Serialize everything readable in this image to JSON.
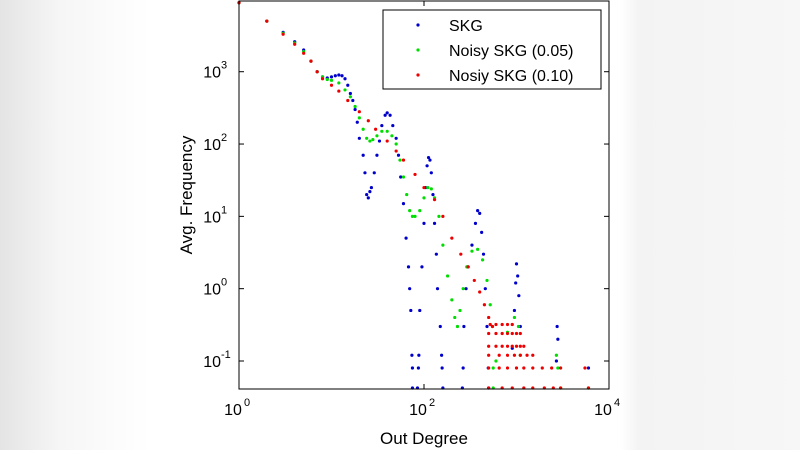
{
  "chart_data": {
    "type": "scatter",
    "title": "",
    "xlabel": "Out Degree",
    "ylabel": "Avg. Frequency",
    "xscale": "log",
    "yscale": "log",
    "xlim": [
      1,
      10000
    ],
    "ylim": [
      0.041,
      9500
    ],
    "grid": false,
    "legend_placement": "top-right",
    "x_ticks": [
      {
        "base": "10",
        "exp": "0",
        "value": 1
      },
      {
        "base": "10",
        "exp": "2",
        "value": 100
      },
      {
        "base": "10",
        "exp": "4",
        "value": 10000
      }
    ],
    "y_ticks": [
      {
        "base": "10",
        "exp": "-1",
        "value": 0.1
      },
      {
        "base": "10",
        "exp": "0",
        "value": 1
      },
      {
        "base": "10",
        "exp": "1",
        "value": 10
      },
      {
        "base": "10",
        "exp": "2",
        "value": 100
      },
      {
        "base": "10",
        "exp": "3",
        "value": 1000
      }
    ],
    "series": [
      {
        "name": "SKG",
        "color": "#0000cc",
        "points": [
          [
            1,
            9000
          ],
          [
            2,
            5000
          ],
          [
            3,
            3500
          ],
          [
            4,
            2600
          ],
          [
            5,
            2000
          ],
          [
            6,
            1400
          ],
          [
            7,
            1000
          ],
          [
            8,
            850
          ],
          [
            9,
            820
          ],
          [
            10,
            850
          ],
          [
            11,
            880
          ],
          [
            12,
            900
          ],
          [
            13,
            880
          ],
          [
            14,
            800
          ],
          [
            15,
            650
          ],
          [
            16,
            500
          ],
          [
            17,
            400
          ],
          [
            18,
            300
          ],
          [
            19,
            200
          ],
          [
            20,
            120
          ],
          [
            22,
            70
          ],
          [
            23,
            40
          ],
          [
            24,
            20
          ],
          [
            25,
            18
          ],
          [
            26,
            22
          ],
          [
            27,
            25
          ],
          [
            29,
            40
          ],
          [
            31,
            70
          ],
          [
            33,
            110
          ],
          [
            35,
            180
          ],
          [
            38,
            250
          ],
          [
            40,
            270
          ],
          [
            43,
            250
          ],
          [
            46,
            180
          ],
          [
            50,
            120
          ],
          [
            53,
            70
          ],
          [
            56,
            35
          ],
          [
            60,
            15
          ],
          [
            64,
            5
          ],
          [
            68,
            2
          ],
          [
            70,
            1
          ],
          [
            72,
            0.5
          ],
          [
            74,
            0.12
          ],
          [
            75,
            0.08
          ],
          [
            75,
            0.04
          ],
          [
            85,
            0.04
          ],
          [
            87,
            0.08
          ],
          [
            88,
            0.12
          ],
          [
            90,
            0.5
          ],
          [
            95,
            2
          ],
          [
            100,
            8
          ],
          [
            104,
            25
          ],
          [
            108,
            50
          ],
          [
            112,
            65
          ],
          [
            116,
            60
          ],
          [
            120,
            40
          ],
          [
            125,
            20
          ],
          [
            130,
            8
          ],
          [
            136,
            3
          ],
          [
            140,
            1
          ],
          [
            150,
            0.3
          ],
          [
            155,
            0.12
          ],
          [
            157,
            0.08
          ],
          [
            160,
            0.04
          ],
          [
            260,
            0.04
          ],
          [
            265,
            0.08
          ],
          [
            270,
            0.3
          ],
          [
            285,
            1
          ],
          [
            300,
            2
          ],
          [
            330,
            4
          ],
          [
            360,
            8
          ],
          [
            380,
            12
          ],
          [
            400,
            11
          ],
          [
            420,
            6
          ],
          [
            440,
            3
          ],
          [
            460,
            1
          ],
          [
            480,
            0.3
          ],
          [
            495,
            0.08
          ],
          [
            500,
            0.04
          ],
          [
            900,
            0.15
          ],
          [
            950,
            0.5
          ],
          [
            980,
            1.2
          ],
          [
            1000,
            2.2
          ],
          [
            1030,
            1.5
          ],
          [
            1060,
            0.8
          ],
          [
            1100,
            0.3
          ],
          [
            2700,
            0.1
          ],
          [
            2750,
            0.3
          ],
          [
            2800,
            0.2
          ],
          [
            6000,
            0.08
          ]
        ]
      },
      {
        "name": "Noisy SKG (0.05)",
        "color": "#00dd00",
        "points": [
          [
            1,
            9000
          ],
          [
            2,
            5000
          ],
          [
            3,
            3400
          ],
          [
            4,
            2500
          ],
          [
            5,
            1900
          ],
          [
            6,
            1400
          ],
          [
            7,
            1000
          ],
          [
            8,
            850
          ],
          [
            9,
            780
          ],
          [
            10,
            760
          ],
          [
            12,
            700
          ],
          [
            14,
            560
          ],
          [
            16,
            450
          ],
          [
            18,
            330
          ],
          [
            20,
            230
          ],
          [
            22,
            160
          ],
          [
            24,
            120
          ],
          [
            26,
            110
          ],
          [
            28,
            115
          ],
          [
            31,
            130
          ],
          [
            35,
            150
          ],
          [
            40,
            150
          ],
          [
            45,
            130
          ],
          [
            50,
            100
          ],
          [
            55,
            60
          ],
          [
            60,
            35
          ],
          [
            65,
            20
          ],
          [
            70,
            12
          ],
          [
            75,
            10
          ],
          [
            80,
            10
          ],
          [
            90,
            12
          ],
          [
            100,
            18
          ],
          [
            110,
            25
          ],
          [
            120,
            24
          ],
          [
            130,
            18
          ],
          [
            145,
            10
          ],
          [
            160,
            4
          ],
          [
            180,
            1.5
          ],
          [
            200,
            0.7
          ],
          [
            215,
            0.4
          ],
          [
            230,
            0.3
          ],
          [
            245,
            0.5
          ],
          [
            265,
            1
          ],
          [
            290,
            2
          ],
          [
            330,
            3.3
          ],
          [
            380,
            3.5
          ],
          [
            430,
            2.5
          ],
          [
            480,
            1.3
          ],
          [
            520,
            0.6
          ],
          [
            550,
            0.3
          ],
          [
            560,
            0.08
          ],
          [
            560,
            0.04
          ],
          [
            600,
            0.1
          ],
          [
            800,
            0.25
          ],
          [
            950,
            0.4
          ],
          [
            1050,
            0.3
          ],
          [
            1100,
            0.12
          ],
          [
            2700,
            0.12
          ],
          [
            2800,
            0.08
          ],
          [
            3000,
            0.04
          ],
          [
            6000,
            0.04
          ]
        ]
      },
      {
        "name": "Nosiy SKG (0.10)",
        "color": "#ee0000",
        "points": [
          [
            1,
            9000
          ],
          [
            2,
            5000
          ],
          [
            3,
            3300
          ],
          [
            4,
            2400
          ],
          [
            5,
            1800
          ],
          [
            6,
            1400
          ],
          [
            7,
            1000
          ],
          [
            8,
            800
          ],
          [
            10,
            650
          ],
          [
            12,
            540
          ],
          [
            15,
            400
          ],
          [
            20,
            280
          ],
          [
            25,
            210
          ],
          [
            30,
            160
          ],
          [
            40,
            110
          ],
          [
            50,
            80
          ],
          [
            60,
            60
          ],
          [
            80,
            38
          ],
          [
            100,
            25
          ],
          [
            130,
            17
          ],
          [
            160,
            10
          ],
          [
            200,
            5
          ],
          [
            250,
            3
          ],
          [
            300,
            2
          ],
          [
            350,
            1.3
          ],
          [
            400,
            0.9
          ],
          [
            450,
            0.6
          ],
          [
            500,
            0.4
          ],
          [
            550,
            0.3
          ],
          [
            520,
            0.32
          ],
          [
            600,
            0.32
          ],
          [
            700,
            0.32
          ],
          [
            800,
            0.32
          ],
          [
            900,
            0.32
          ],
          [
            500,
            0.24
          ],
          [
            600,
            0.24
          ],
          [
            700,
            0.24
          ],
          [
            800,
            0.24
          ],
          [
            900,
            0.24
          ],
          [
            1000,
            0.24
          ],
          [
            1100,
            0.24
          ],
          [
            500,
            0.16
          ],
          [
            600,
            0.16
          ],
          [
            700,
            0.16
          ],
          [
            800,
            0.16
          ],
          [
            900,
            0.16
          ],
          [
            1000,
            0.16
          ],
          [
            1100,
            0.16
          ],
          [
            1200,
            0.16
          ],
          [
            500,
            0.12
          ],
          [
            650,
            0.12
          ],
          [
            800,
            0.12
          ],
          [
            950,
            0.12
          ],
          [
            1100,
            0.12
          ],
          [
            1300,
            0.12
          ],
          [
            1500,
            0.12
          ],
          [
            500,
            0.08
          ],
          [
            650,
            0.08
          ],
          [
            800,
            0.08
          ],
          [
            1000,
            0.08
          ],
          [
            1200,
            0.08
          ],
          [
            1500,
            0.08
          ],
          [
            1900,
            0.08
          ],
          [
            2400,
            0.08
          ],
          [
            3000,
            0.08
          ],
          [
            500,
            0.04
          ],
          [
            700,
            0.04
          ],
          [
            900,
            0.04
          ],
          [
            1200,
            0.04
          ],
          [
            1500,
            0.04
          ],
          [
            2000,
            0.04
          ],
          [
            2500,
            0.04
          ],
          [
            3000,
            0.04
          ],
          [
            5500,
            0.08
          ],
          [
            6000,
            0.04
          ]
        ]
      }
    ]
  }
}
